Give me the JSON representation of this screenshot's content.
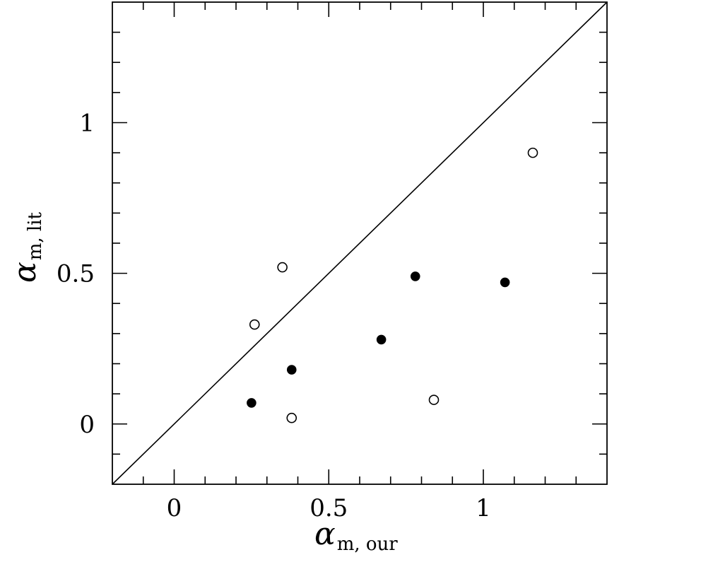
{
  "chart_data": {
    "type": "scatter",
    "title": "",
    "xlabel": {
      "symbol": "α",
      "subscript": "m, our"
    },
    "ylabel": {
      "symbol": "α",
      "subscript": "m, lit"
    },
    "xlim": [
      -0.2,
      1.4
    ],
    "ylim": [
      -0.2,
      1.4
    ],
    "x_major_ticks": [
      0,
      0.5,
      1
    ],
    "y_major_ticks": [
      0,
      0.5,
      1
    ],
    "x_tick_labels": [
      "0",
      "0.5",
      "1"
    ],
    "y_tick_labels": [
      "0",
      "0.5",
      "1"
    ],
    "minor_tick_step": 0.1,
    "grid": false,
    "reference_line": {
      "from": [
        -0.2,
        -0.2
      ],
      "to": [
        1.4,
        1.4
      ]
    },
    "series": [
      {
        "marker": "filled-circle",
        "points": [
          {
            "x": 0.25,
            "y": 0.07
          },
          {
            "x": 0.38,
            "y": 0.18
          },
          {
            "x": 0.67,
            "y": 0.28
          },
          {
            "x": 0.78,
            "y": 0.49
          },
          {
            "x": 1.07,
            "y": 0.47
          }
        ]
      },
      {
        "marker": "open-circle",
        "points": [
          {
            "x": 0.26,
            "y": 0.33
          },
          {
            "x": 0.35,
            "y": 0.52
          },
          {
            "x": 0.38,
            "y": 0.02
          },
          {
            "x": 0.84,
            "y": 0.08
          },
          {
            "x": 1.16,
            "y": 0.9
          }
        ]
      }
    ]
  }
}
